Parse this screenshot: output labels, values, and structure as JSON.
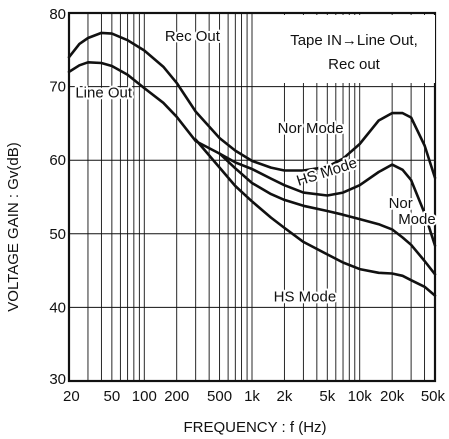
{
  "chart_data": {
    "type": "line",
    "xscale": "log",
    "xlabel": "FREQUENCY : f (Hz)",
    "ylabel": "VOLTAGE GAIN : Gv(dB)",
    "xlim": [
      20,
      50000
    ],
    "ylim": [
      30,
      80
    ],
    "grid": true,
    "xticks": [
      {
        "v": 20,
        "label": "20"
      },
      {
        "v": 50,
        "label": "50"
      },
      {
        "v": 100,
        "label": "100"
      },
      {
        "v": 200,
        "label": "200"
      },
      {
        "v": 500,
        "label": "500"
      },
      {
        "v": 1000,
        "label": "1k"
      },
      {
        "v": 2000,
        "label": "2k"
      },
      {
        "v": 5000,
        "label": "5k"
      },
      {
        "v": 10000,
        "label": "10k"
      },
      {
        "v": 20000,
        "label": "20k"
      },
      {
        "v": 50000,
        "label": "50k"
      }
    ],
    "yticks": [
      {
        "v": 30,
        "label": "30"
      },
      {
        "v": 40,
        "label": "40"
      },
      {
        "v": 50,
        "label": "50"
      },
      {
        "v": 60,
        "label": "60"
      },
      {
        "v": 70,
        "label": "70"
      },
      {
        "v": 80,
        "label": "80"
      }
    ],
    "legend_box": [
      "Tape IN→Line Out,",
      "Rec out"
    ],
    "series": [
      {
        "x": [
          20,
          25,
          30,
          40,
          50,
          70,
          100,
          150,
          200,
          300,
          500,
          700,
          1000,
          1500,
          2000,
          3000,
          5000,
          7000,
          10000,
          15000,
          20000,
          25000,
          30000,
          40000,
          50000
        ],
        "y": [
          74,
          75.8,
          76.6,
          77.3,
          77.2,
          76.3,
          74.9,
          72.7,
          70.5,
          66.6,
          63,
          61.3,
          59.9,
          59,
          58.6,
          58.6,
          59.1,
          60.2,
          62.2,
          65.4,
          66.4,
          66.4,
          65.8,
          62,
          57.6
        ]
      },
      {
        "x": [
          20,
          25,
          30,
          40,
          50,
          70,
          100,
          150,
          200,
          300,
          500,
          700,
          1000,
          1500,
          2000,
          3000,
          5000,
          7000,
          10000,
          15000,
          20000,
          25000,
          30000,
          40000,
          50000
        ],
        "y": [
          72,
          72.9,
          73.3,
          73.2,
          72.8,
          71.6,
          69.8,
          67.8,
          65.9,
          62.6,
          60.9,
          59.7,
          58.8,
          57.5,
          56.6,
          55.6,
          55.2,
          55.6,
          56.6,
          58.4,
          59.4,
          58.7,
          57.3,
          52.8,
          48.4
        ]
      },
      {
        "x": [
          500,
          700,
          1000,
          1500,
          2000,
          3000,
          5000,
          7000,
          10000,
          15000,
          20000,
          25000,
          30000,
          40000,
          50000
        ],
        "y": [
          60.9,
          58.9,
          56.9,
          55.4,
          54.6,
          53.8,
          53.1,
          52.6,
          52,
          51.3,
          50.6,
          49.5,
          48.5,
          46.3,
          44.5
        ]
      },
      {
        "x": [
          300,
          500,
          700,
          1000,
          1500,
          2000,
          3000,
          5000,
          7000,
          10000,
          15000,
          20000,
          25000,
          30000,
          40000,
          50000
        ],
        "y": [
          62.8,
          59,
          56.5,
          54.4,
          52.2,
          50.8,
          48.9,
          47.2,
          46.1,
          45.2,
          44.7,
          44.6,
          44.3,
          43.7,
          42.8,
          41.6
        ]
      }
    ],
    "annotations": [
      {
        "text": "Rec Out",
        "x": 280,
        "y": 76.2,
        "anchor": "middle"
      },
      {
        "text": "Line Out",
        "x": 42,
        "y": 68.5,
        "anchor": "middle"
      },
      {
        "text": "Nor Mode",
        "x": 3500,
        "y": 63.7,
        "anchor": "middle"
      },
      {
        "text": "HS Mode",
        "x": 5100,
        "y": 57.8,
        "anchor": "middle",
        "rotate": -18
      },
      {
        "text": "Nor",
        "x": 24000,
        "y": 53.5,
        "anchor": "middle"
      },
      {
        "text": "Mode",
        "x": 34000,
        "y": 51.3,
        "anchor": "middle"
      },
      {
        "text": "HS Mode",
        "x": 3100,
        "y": 40.8,
        "anchor": "middle"
      }
    ]
  }
}
